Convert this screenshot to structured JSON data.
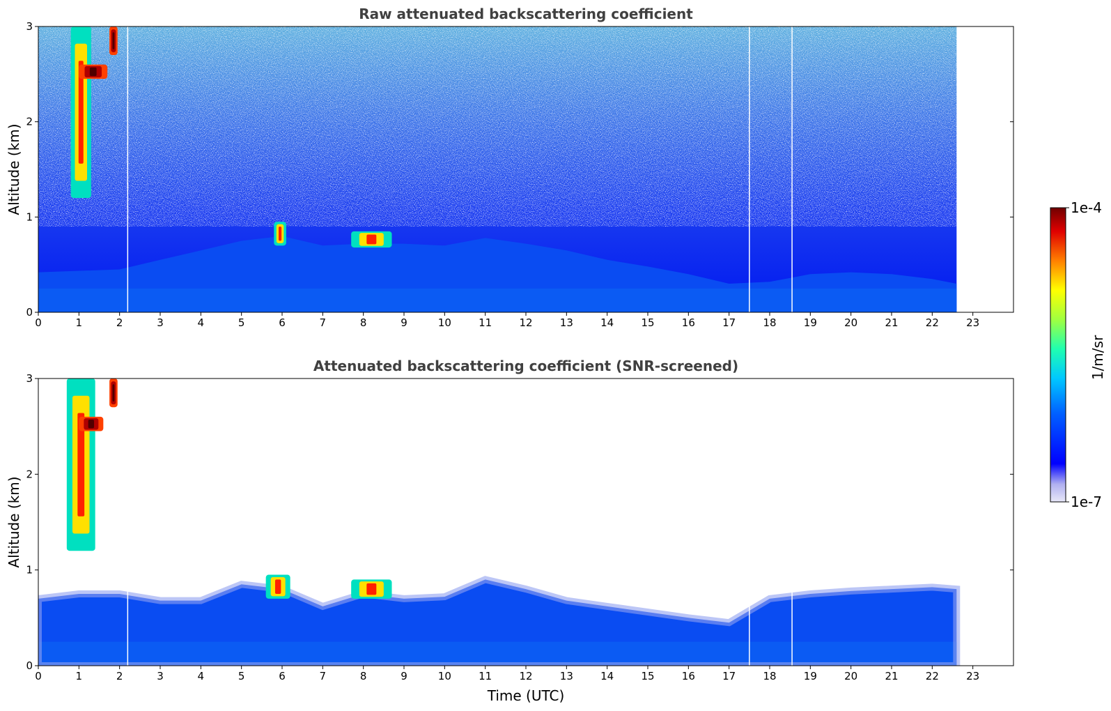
{
  "chart_data": [
    {
      "type": "heatmap",
      "title": "Raw attenuated backscattering coefficient",
      "xlabel": "",
      "ylabel": "Altitude (km)",
      "xlim": [
        0,
        24
      ],
      "ylim": [
        0,
        3
      ],
      "x_ticks": [
        "0",
        "1",
        "2",
        "3",
        "4",
        "5",
        "6",
        "7",
        "8",
        "9",
        "10",
        "11",
        "12",
        "13",
        "14",
        "15",
        "16",
        "17",
        "18",
        "19",
        "20",
        "21",
        "22",
        "23"
      ],
      "y_ticks": [
        "0",
        "1",
        "2",
        "3"
      ],
      "data_end_hour": 22.6,
      "data_gaps_hours": [
        2.2,
        17.5,
        18.55
      ],
      "boundary_layer_top_km": [
        [
          0,
          0.42
        ],
        [
          2,
          0.45
        ],
        [
          3,
          0.55
        ],
        [
          4,
          0.65
        ],
        [
          5,
          0.75
        ],
        [
          6,
          0.8
        ],
        [
          7,
          0.7
        ],
        [
          8,
          0.72
        ],
        [
          9,
          0.72
        ],
        [
          10,
          0.7
        ],
        [
          11,
          0.78
        ],
        [
          12,
          0.72
        ],
        [
          13,
          0.65
        ],
        [
          14,
          0.55
        ],
        [
          15,
          0.48
        ],
        [
          16,
          0.4
        ],
        [
          17,
          0.3
        ],
        [
          18,
          0.32
        ],
        [
          19,
          0.4
        ],
        [
          20,
          0.42
        ],
        [
          21,
          0.4
        ],
        [
          22,
          0.35
        ],
        [
          22.6,
          0.3
        ]
      ],
      "cloud_features": [
        {
          "x": [
            0.8,
            1.3
          ],
          "y": [
            1.2,
            3.0
          ],
          "level": "high"
        },
        {
          "x": [
            1.0,
            1.7
          ],
          "y": [
            2.45,
            2.6
          ],
          "level": "very high"
        },
        {
          "x": [
            1.75,
            1.95
          ],
          "y": [
            2.7,
            3.0
          ],
          "level": "very high"
        },
        {
          "x": [
            5.8,
            6.1
          ],
          "y": [
            0.7,
            0.95
          ],
          "level": "high"
        },
        {
          "x": [
            7.7,
            8.7
          ],
          "y": [
            0.68,
            0.85
          ],
          "level": "high"
        }
      ]
    },
    {
      "type": "heatmap",
      "title": "Attenuated backscattering coefficient (SNR-screened)",
      "xlabel": "Time (UTC)",
      "ylabel": "Altitude (km)",
      "xlim": [
        0,
        24
      ],
      "ylim": [
        0,
        3
      ],
      "x_ticks": [
        "0",
        "1",
        "2",
        "3",
        "4",
        "5",
        "6",
        "7",
        "8",
        "9",
        "10",
        "11",
        "12",
        "13",
        "14",
        "15",
        "16",
        "17",
        "18",
        "19",
        "20",
        "21",
        "22",
        "23"
      ],
      "y_ticks": [
        "0",
        "1",
        "2",
        "3"
      ],
      "data_end_hour": 22.6,
      "data_gaps_hours": [
        2.2,
        17.5,
        18.55
      ],
      "screened_top_km": [
        [
          0,
          0.7
        ],
        [
          1,
          0.75
        ],
        [
          2,
          0.75
        ],
        [
          3,
          0.68
        ],
        [
          4,
          0.68
        ],
        [
          5,
          0.85
        ],
        [
          6,
          0.8
        ],
        [
          7,
          0.62
        ],
        [
          8,
          0.75
        ],
        [
          9,
          0.7
        ],
        [
          10,
          0.72
        ],
        [
          11,
          0.9
        ],
        [
          12,
          0.8
        ],
        [
          13,
          0.68
        ],
        [
          14,
          0.62
        ],
        [
          15,
          0.56
        ],
        [
          16,
          0.5
        ],
        [
          17,
          0.45
        ],
        [
          18,
          0.7
        ],
        [
          19,
          0.75
        ],
        [
          20,
          0.78
        ],
        [
          21,
          0.8
        ],
        [
          22,
          0.82
        ],
        [
          22.6,
          0.8
        ]
      ],
      "cloud_features": [
        {
          "x": [
            0.7,
            1.4
          ],
          "y": [
            1.2,
            3.0
          ],
          "level": "high"
        },
        {
          "x": [
            1.0,
            1.6
          ],
          "y": [
            2.45,
            2.6
          ],
          "level": "very high"
        },
        {
          "x": [
            1.75,
            1.95
          ],
          "y": [
            2.7,
            3.0
          ],
          "level": "very high"
        },
        {
          "x": [
            5.6,
            6.2
          ],
          "y": [
            0.7,
            0.95
          ],
          "level": "high"
        },
        {
          "x": [
            7.7,
            8.7
          ],
          "y": [
            0.7,
            0.9
          ],
          "level": "high"
        }
      ]
    }
  ],
  "colorbar": {
    "label": "1/m/sr",
    "min_label": "1e-7",
    "max_label": "1e-4",
    "scale": "log",
    "colors": [
      "#e8e8f8",
      "#c0c0f0",
      "#9090e8",
      "#0000ff",
      "#0050ff",
      "#00a0ff",
      "#00e0e0",
      "#40ff90",
      "#c0ff40",
      "#ffff00",
      "#ffa000",
      "#ff3000",
      "#c00000",
      "#700000"
    ]
  }
}
